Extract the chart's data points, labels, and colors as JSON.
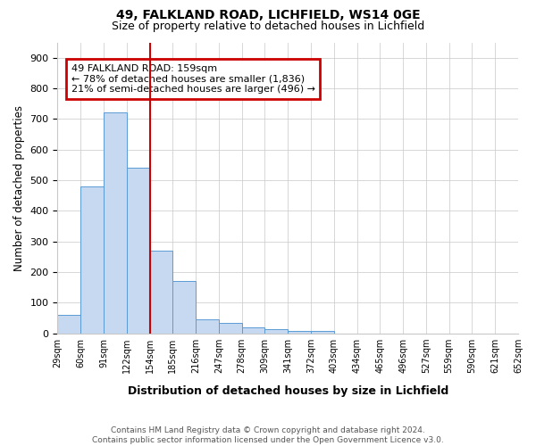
{
  "title1": "49, FALKLAND ROAD, LICHFIELD, WS14 0GE",
  "title2": "Size of property relative to detached houses in Lichfield",
  "xlabel": "Distribution of detached houses by size in Lichfield",
  "ylabel": "Number of detached properties",
  "footnote": "Contains HM Land Registry data © Crown copyright and database right 2024.\nContains public sector information licensed under the Open Government Licence v3.0.",
  "bin_labels": [
    "29sqm",
    "60sqm",
    "91sqm",
    "122sqm",
    "154sqm",
    "185sqm",
    "216sqm",
    "247sqm",
    "278sqm",
    "309sqm",
    "341sqm",
    "372sqm",
    "403sqm",
    "434sqm",
    "465sqm",
    "496sqm",
    "527sqm",
    "559sqm",
    "590sqm",
    "621sqm",
    "652sqm"
  ],
  "bar_heights": [
    60,
    480,
    720,
    540,
    270,
    170,
    45,
    35,
    20,
    15,
    8,
    8,
    0,
    0,
    0,
    0,
    0,
    0,
    0,
    0
  ],
  "bar_color": "#c6d9f0",
  "bar_edge_color": "#5b9bd5",
  "ylim": [
    0,
    950
  ],
  "yticks": [
    0,
    100,
    200,
    300,
    400,
    500,
    600,
    700,
    800,
    900
  ],
  "red_line_x": 4,
  "annotation_text": "49 FALKLAND ROAD: 159sqm\n← 78% of detached houses are smaller (1,836)\n21% of semi-detached houses are larger (496) →",
  "annotation_box_color": "#cc0000",
  "background_color": "#ffffff",
  "grid_color": "#c8c8c8"
}
